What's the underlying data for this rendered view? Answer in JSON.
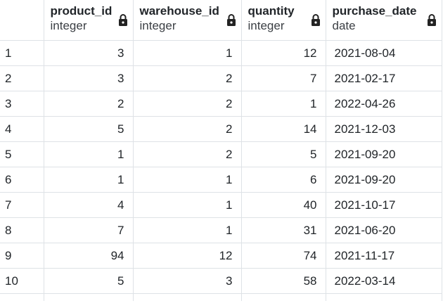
{
  "columns": [
    {
      "name": "product_id",
      "type": "integer"
    },
    {
      "name": "warehouse_id",
      "type": "integer"
    },
    {
      "name": "quantity",
      "type": "integer"
    },
    {
      "name": "purchase_date",
      "type": "date"
    }
  ],
  "rows": [
    {
      "n": "1",
      "product_id": "3",
      "warehouse_id": "1",
      "quantity": "12",
      "purchase_date": "2021-08-04"
    },
    {
      "n": "2",
      "product_id": "3",
      "warehouse_id": "2",
      "quantity": "7",
      "purchase_date": "2021-02-17"
    },
    {
      "n": "3",
      "product_id": "2",
      "warehouse_id": "2",
      "quantity": "1",
      "purchase_date": "2022-04-26"
    },
    {
      "n": "4",
      "product_id": "5",
      "warehouse_id": "2",
      "quantity": "14",
      "purchase_date": "2021-12-03"
    },
    {
      "n": "5",
      "product_id": "1",
      "warehouse_id": "2",
      "quantity": "5",
      "purchase_date": "2021-09-20"
    },
    {
      "n": "6",
      "product_id": "1",
      "warehouse_id": "1",
      "quantity": "6",
      "purchase_date": "2021-09-20"
    },
    {
      "n": "7",
      "product_id": "4",
      "warehouse_id": "1",
      "quantity": "40",
      "purchase_date": "2021-10-17"
    },
    {
      "n": "8",
      "product_id": "7",
      "warehouse_id": "1",
      "quantity": "31",
      "purchase_date": "2021-06-20"
    },
    {
      "n": "9",
      "product_id": "94",
      "warehouse_id": "12",
      "quantity": "74",
      "purchase_date": "2021-11-17"
    },
    {
      "n": "10",
      "product_id": "5",
      "warehouse_id": "3",
      "quantity": "58",
      "purchase_date": "2022-03-14"
    }
  ],
  "icons": {
    "column_lock": "lock-icon"
  }
}
